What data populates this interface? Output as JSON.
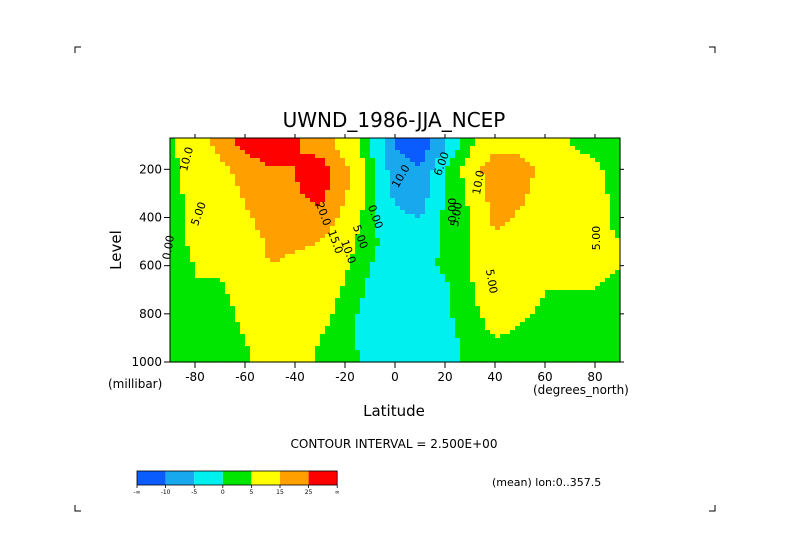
{
  "chart_data": {
    "type": "heatmap",
    "title": "UWND_1986-JJA_NCEP",
    "xlabel": "Latitude",
    "ylabel": "Level",
    "x_unit": "(degrees_north)",
    "y_unit": "(millibar)",
    "xlim": [
      -90,
      90
    ],
    "ylim": [
      1000,
      70
    ],
    "x_ticks": [
      -80,
      -60,
      -40,
      -20,
      0,
      20,
      40,
      60,
      80
    ],
    "y_ticks": [
      200,
      400,
      600,
      800,
      1000
    ],
    "contour_interval": "CONTOUR INTERVAL = 2.500E+00",
    "mean_note": "(mean) lon:0..357.5",
    "colorbar": {
      "labels": [
        "-∞",
        "-10",
        "-5",
        "0",
        "5",
        "15",
        "25",
        "∞"
      ],
      "colors": [
        "#0a5cff",
        "#18a8ee",
        "#00f0f0",
        "#00e600",
        "#ffff00",
        "#ffa000",
        "#ff0000"
      ],
      "thresholds": [
        -10,
        -5,
        0,
        5,
        15,
        25
      ]
    },
    "x": [
      -90,
      -80,
      -70,
      -60,
      -50,
      -40,
      -30,
      -20,
      -10,
      0,
      10,
      20,
      30,
      40,
      50,
      60,
      70,
      80,
      90
    ],
    "y": [
      1000,
      900,
      800,
      700,
      600,
      500,
      400,
      300,
      200,
      100
    ],
    "values": [
      [
        2,
        2,
        1,
        3,
        10,
        7,
        4,
        2,
        -1,
        -2,
        -3,
        -2,
        1,
        3,
        3,
        2,
        2,
        1,
        1
      ],
      [
        3,
        3,
        2,
        5,
        12,
        9,
        5,
        2,
        -3,
        -2,
        -3,
        -2,
        2,
        5,
        4,
        3,
        3,
        3,
        2
      ],
      [
        3,
        4,
        2,
        7,
        13,
        11,
        7,
        3,
        -3,
        -2,
        -2,
        -1,
        3,
        8,
        6,
        4,
        4,
        4,
        3
      ],
      [
        3,
        5,
        4,
        9,
        14,
        12,
        9,
        4,
        -1,
        -1,
        -2,
        -1,
        4,
        10,
        8,
        5,
        5,
        5,
        4
      ],
      [
        3,
        5,
        6,
        11,
        15,
        14,
        12,
        6,
        0,
        -1,
        -2,
        1,
        5,
        12,
        10,
        6,
        5,
        6,
        5
      ],
      [
        3,
        6,
        8,
        12,
        16,
        16,
        15,
        8,
        1,
        -2,
        -3,
        1,
        5,
        14,
        12,
        7,
        5,
        6,
        5
      ],
      [
        3,
        6,
        9,
        14,
        18,
        20,
        22,
        12,
        1,
        -4,
        -5,
        1,
        5,
        17,
        14,
        8,
        6,
        6,
        4
      ],
      [
        3,
        7,
        10,
        16,
        21,
        24,
        28,
        16,
        2,
        -6,
        -8,
        0,
        6,
        20,
        17,
        10,
        8,
        6,
        4
      ],
      [
        3,
        8,
        12,
        19,
        24,
        25,
        31,
        18,
        2,
        -8,
        -10,
        0,
        8,
        23,
        20,
        12,
        9,
        6,
        3
      ],
      [
        4,
        9,
        18,
        28,
        32,
        26,
        20,
        10,
        0,
        -10,
        -13,
        -6,
        4,
        11,
        11,
        8,
        5,
        3,
        2
      ]
    ],
    "contour_labels": [
      "10.0",
      "5.00",
      "0.00",
      "20.0",
      "15.0",
      "10.0",
      "5.00",
      "0.00",
      "10.0",
      "6.00",
      "5.00",
      "10.0",
      "0.00",
      "5.00",
      "5.00"
    ]
  }
}
